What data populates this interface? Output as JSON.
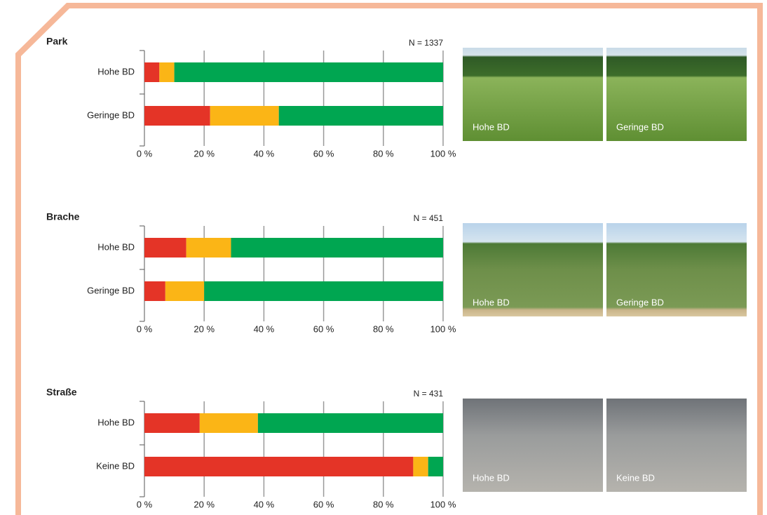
{
  "chart_data": [
    {
      "type": "stacked-barh",
      "title": "Park",
      "note": "N = 1337",
      "categories": [
        "Hohe BD",
        "Geringe BD"
      ],
      "series": [
        {
          "color": "#e43427",
          "values": [
            5,
            22
          ]
        },
        {
          "color": "#fbb516",
          "values": [
            5,
            23
          ]
        },
        {
          "color": "#00a651",
          "values": [
            90,
            55
          ]
        }
      ],
      "xlim": [
        0,
        100
      ],
      "xticks": [
        {
          "value": 0,
          "label": "0 %"
        },
        {
          "value": 20,
          "label": "20 %"
        },
        {
          "value": 40,
          "label": "40 %"
        },
        {
          "value": 60,
          "label": "60 %"
        },
        {
          "value": 80,
          "label": "80 %"
        },
        {
          "value": 100,
          "label": "100 %"
        }
      ],
      "grid": true,
      "photos": [
        "Hohe BD",
        "Geringe BD"
      ]
    },
    {
      "type": "stacked-barh",
      "title": "Brache",
      "note": "N = 451",
      "categories": [
        "Hohe BD",
        "Geringe BD"
      ],
      "series": [
        {
          "color": "#e43427",
          "values": [
            14,
            7
          ]
        },
        {
          "color": "#fbb516",
          "values": [
            15,
            13
          ]
        },
        {
          "color": "#00a651",
          "values": [
            71,
            80
          ]
        }
      ],
      "xlim": [
        0,
        100
      ],
      "xticks": [
        {
          "value": 0,
          "label": "0 %"
        },
        {
          "value": 20,
          "label": "20 %"
        },
        {
          "value": 40,
          "label": "40 %"
        },
        {
          "value": 60,
          "label": "60 %"
        },
        {
          "value": 80,
          "label": "80 %"
        },
        {
          "value": 100,
          "label": "100 %"
        }
      ],
      "grid": true,
      "photos": [
        "Hohe BD",
        "Geringe BD"
      ]
    },
    {
      "type": "stacked-barh",
      "title": "Straße",
      "note": "N = 431",
      "categories": [
        "Hohe BD",
        "Keine BD"
      ],
      "series": [
        {
          "color": "#e43427",
          "values": [
            18.5,
            90
          ]
        },
        {
          "color": "#fbb516",
          "values": [
            19.5,
            5
          ]
        },
        {
          "color": "#00a651",
          "values": [
            62,
            5
          ]
        }
      ],
      "xlim": [
        0,
        100
      ],
      "xticks": [
        {
          "value": 0,
          "label": "0 %"
        },
        {
          "value": 20,
          "label": "20 %"
        },
        {
          "value": 40,
          "label": "40 %"
        },
        {
          "value": 60,
          "label": "60 %"
        },
        {
          "value": 80,
          "label": "80 %"
        },
        {
          "value": 100,
          "label": "100 %"
        }
      ],
      "grid": true,
      "photos": [
        "Hohe BD",
        "Keine BD"
      ]
    }
  ]
}
